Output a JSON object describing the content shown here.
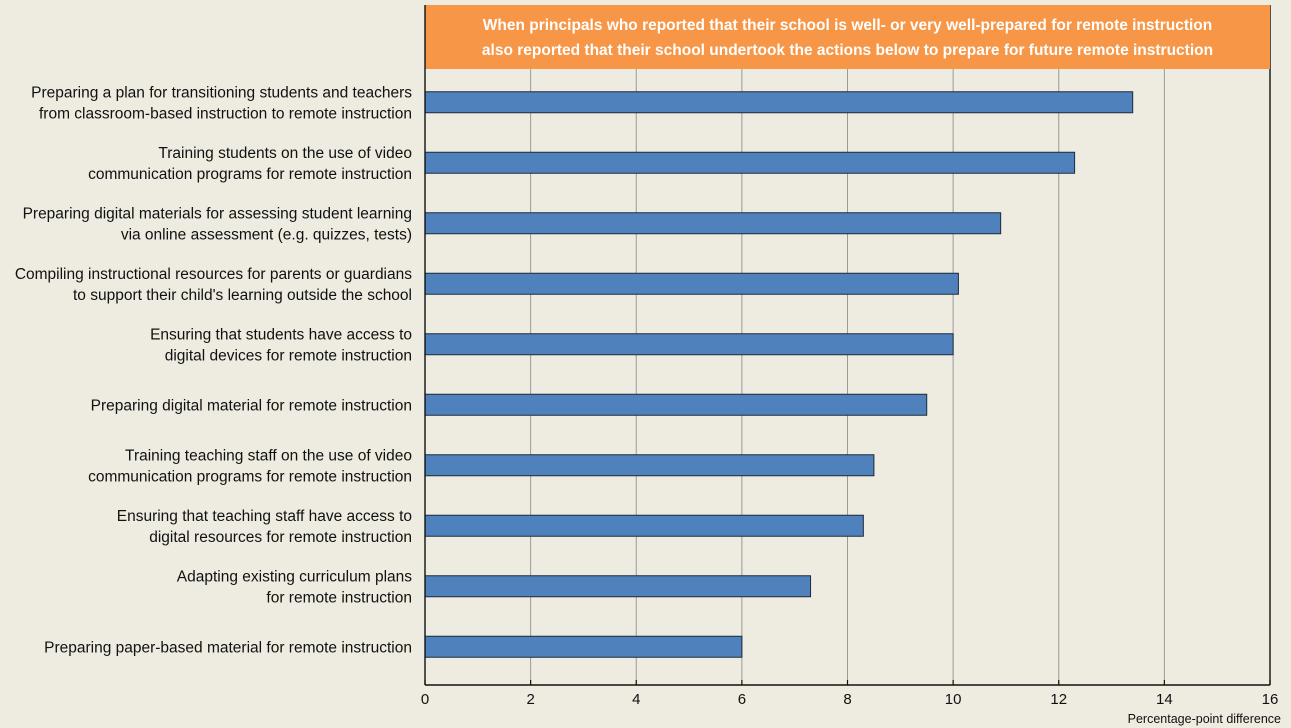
{
  "chart_data": {
    "type": "bar",
    "orientation": "horizontal",
    "title": "When principals who reported that their school is well- or very well-prepared for remote instruction also reported that their school undertook the actions below to prepare for future remote instruction",
    "title_lines": [
      "When principals who reported that their school is well- or very well-prepared for remote instruction",
      "also reported that their school undertook the actions below to prepare for future remote instruction"
    ],
    "xlabel": "Percentage-point difference",
    "ylabel": "",
    "xlim": [
      0,
      16
    ],
    "ticks": [
      0,
      2,
      4,
      6,
      8,
      10,
      12,
      14,
      16
    ],
    "grid": true,
    "categories": [
      [
        "Preparing a plan for transitioning students and teachers",
        "from classroom-based instruction to remote instruction"
      ],
      [
        "Training students on the use of video",
        "communication programs for remote instruction"
      ],
      [
        "Preparing digital materials for assessing student learning",
        "via online assessment (e.g. quizzes, tests)"
      ],
      [
        "Compiling instructional resources for parents or guardians",
        "to support their child's learning outside the school"
      ],
      [
        "Ensuring that students have access to",
        "digital devices for remote instruction"
      ],
      [
        "Preparing digital material for remote instruction"
      ],
      [
        "Training teaching staff on the use of video",
        "communication programs for remote instruction"
      ],
      [
        "Ensuring that teaching staff have access to",
        "digital resources for remote instruction"
      ],
      [
        "Adapting existing curriculum plans",
        "for remote instruction"
      ],
      [
        "Preparing paper-based material for remote instruction"
      ]
    ],
    "values": [
      13.4,
      12.3,
      10.9,
      10.1,
      10.0,
      9.5,
      8.5,
      8.3,
      7.3,
      6.0
    ]
  },
  "colors": {
    "background": "#eeebe0",
    "banner": "#f79646",
    "bar_fill": "#4f81bd",
    "bar_stroke": "#1f2a3a",
    "grid": "#9a9a9a",
    "axis": "#111111"
  }
}
